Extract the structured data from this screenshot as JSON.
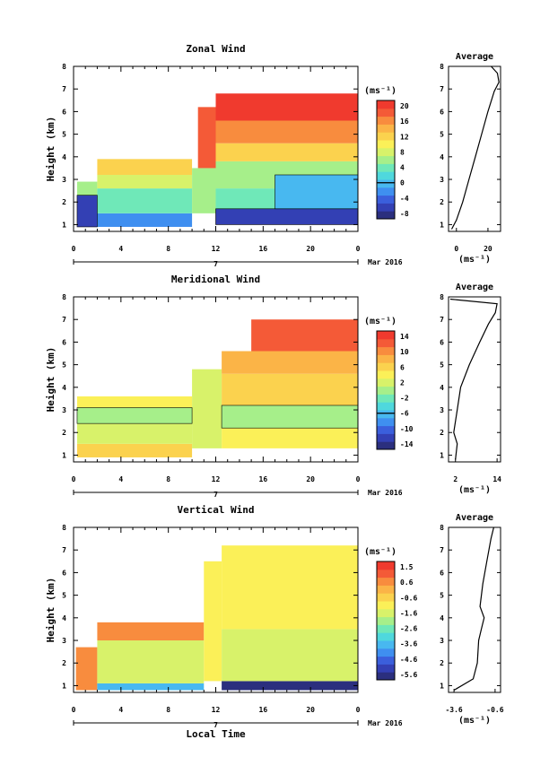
{
  "x_axis_title": "Local Time",
  "date_label": "Mar 2016",
  "day_label": "7",
  "colorbar_unit": "(ms⁻¹)",
  "chart_data": [
    {
      "type": "heatmap",
      "title": "Zonal Wind",
      "ylabel": "Height (km)",
      "xlabel": "Local Time",
      "xlim": [
        0,
        24
      ],
      "ylim": [
        0.7,
        8
      ],
      "x_ticks": [
        "0",
        "4",
        "8",
        "12",
        "16",
        "20",
        "0"
      ],
      "y_ticks": [
        "1",
        "2",
        "3",
        "4",
        "5",
        "6",
        "7",
        "8"
      ],
      "colorbar": {
        "label": "(ms⁻¹)",
        "ticks": [
          "20",
          "16",
          "12",
          "8",
          "4",
          "0",
          "-4",
          "-8"
        ],
        "range": [
          -10,
          22
        ]
      },
      "zero_contour": true,
      "fields": [
        {
          "t0": 0.3,
          "t1": 2.0,
          "h0": 0.9,
          "h1": 2.3,
          "v": -6
        },
        {
          "t0": 0.3,
          "t1": 2.0,
          "h0": 2.3,
          "h1": 2.9,
          "v": 6
        },
        {
          "t0": 2.0,
          "t1": 10.0,
          "h0": 0.9,
          "h1": 1.5,
          "v": -2
        },
        {
          "t0": 2.0,
          "t1": 10.0,
          "h0": 1.5,
          "h1": 2.6,
          "v": 4
        },
        {
          "t0": 2.0,
          "t1": 10.0,
          "h0": 2.6,
          "h1": 3.2,
          "v": 8
        },
        {
          "t0": 2.0,
          "t1": 10.0,
          "h0": 3.2,
          "h1": 3.9,
          "v": 13
        },
        {
          "t0": 10.0,
          "t1": 12.0,
          "h0": 1.5,
          "h1": 3.5,
          "v": 6
        },
        {
          "t0": 10.5,
          "t1": 12.0,
          "h0": 3.5,
          "h1": 6.2,
          "v": 19
        },
        {
          "t0": 12.0,
          "t1": 24.0,
          "h0": 1.0,
          "h1": 1.7,
          "v": -6
        },
        {
          "t0": 12.0,
          "t1": 24.0,
          "h0": 1.7,
          "h1": 2.6,
          "v": 4
        },
        {
          "t0": 12.0,
          "t1": 24.0,
          "h0": 2.6,
          "h1": 3.8,
          "v": 6
        },
        {
          "t0": 12.0,
          "t1": 24.0,
          "h0": 3.8,
          "h1": 4.6,
          "v": 12
        },
        {
          "t0": 12.0,
          "t1": 24.0,
          "h0": 4.6,
          "h1": 5.6,
          "v": 16
        },
        {
          "t0": 12.0,
          "t1": 24.0,
          "h0": 5.6,
          "h1": 6.8,
          "v": 20
        },
        {
          "t0": 17.0,
          "t1": 24.0,
          "h0": 1.7,
          "h1": 3.2,
          "v": 0
        }
      ],
      "average_profile": {
        "title": "Average",
        "xlabel": "(ms⁻¹)",
        "xlim": [
          -5,
          28
        ],
        "x_ticks": [
          "0",
          "20"
        ],
        "ylim": [
          0.7,
          8
        ],
        "points": [
          [
            -3,
            0.8
          ],
          [
            0,
            1.2
          ],
          [
            4,
            2.0
          ],
          [
            8,
            3.0
          ],
          [
            12,
            4.0
          ],
          [
            16,
            5.0
          ],
          [
            20,
            6.0
          ],
          [
            24,
            6.9
          ],
          [
            27,
            7.3
          ],
          [
            26,
            7.7
          ],
          [
            22,
            8.0
          ]
        ]
      }
    },
    {
      "type": "heatmap",
      "title": "Meridional Wind",
      "ylabel": "Height (km)",
      "xlabel": "Local Time",
      "xlim": [
        0,
        24
      ],
      "ylim": [
        0.7,
        8
      ],
      "x_ticks": [
        "0",
        "4",
        "8",
        "12",
        "16",
        "20",
        "0"
      ],
      "y_ticks": [
        "1",
        "2",
        "3",
        "4",
        "5",
        "6",
        "7",
        "8"
      ],
      "colorbar": {
        "label": "(ms⁻¹)",
        "ticks": [
          "14",
          "10",
          "6",
          "2",
          "-2",
          "-6",
          "-10",
          "-14"
        ],
        "range": [
          -16,
          16
        ]
      },
      "zero_contour": true,
      "fields": [
        {
          "t0": 0.3,
          "t1": 10.0,
          "h0": 0.9,
          "h1": 1.5,
          "v": 6
        },
        {
          "t0": 0.3,
          "t1": 10.0,
          "h0": 1.5,
          "h1": 2.4,
          "v": 2
        },
        {
          "t0": 0.3,
          "t1": 10.0,
          "h0": 2.4,
          "h1": 3.1,
          "v": 0
        },
        {
          "t0": 0.3,
          "t1": 10.0,
          "h0": 3.1,
          "h1": 3.6,
          "v": 4
        },
        {
          "t0": 10.0,
          "t1": 12.5,
          "h0": 1.3,
          "h1": 4.8,
          "v": 3
        },
        {
          "t0": 12.5,
          "t1": 24.0,
          "h0": 1.3,
          "h1": 2.2,
          "v": 4
        },
        {
          "t0": 12.5,
          "t1": 24.0,
          "h0": 2.2,
          "h1": 3.2,
          "v": 1
        },
        {
          "t0": 12.5,
          "t1": 24.0,
          "h0": 3.2,
          "h1": 4.6,
          "v": 6
        },
        {
          "t0": 12.5,
          "t1": 24.0,
          "h0": 4.6,
          "h1": 5.6,
          "v": 9
        },
        {
          "t0": 15.0,
          "t1": 24.0,
          "h0": 5.6,
          "h1": 7.0,
          "v": 13
        }
      ],
      "average_profile": {
        "title": "Average",
        "xlabel": "(ms⁻¹)",
        "xlim": [
          0,
          15
        ],
        "x_ticks": [
          "2",
          "14"
        ],
        "ylim": [
          0.7,
          8
        ],
        "points": [
          [
            2,
            0.8
          ],
          [
            2.5,
            1.5
          ],
          [
            1.5,
            2.0
          ],
          [
            2.5,
            3.0
          ],
          [
            3.5,
            4.0
          ],
          [
            6,
            5.0
          ],
          [
            9,
            6.0
          ],
          [
            11.5,
            6.8
          ],
          [
            13.5,
            7.3
          ],
          [
            14,
            7.7
          ],
          [
            0.5,
            7.9
          ]
        ]
      }
    },
    {
      "type": "heatmap",
      "title": "Vertical Wind",
      "ylabel": "Height (km)",
      "xlabel": "Local Time",
      "xlim": [
        0,
        24
      ],
      "ylim": [
        0.7,
        8
      ],
      "x_ticks": [
        "0",
        "4",
        "8",
        "12",
        "16",
        "20",
        "0"
      ],
      "y_ticks": [
        "1",
        "2",
        "3",
        "4",
        "5",
        "6",
        "7",
        "8"
      ],
      "colorbar": {
        "label": "(ms⁻¹)",
        "ticks": [
          "1.5",
          "0.6",
          "-0.6",
          "-1.6",
          "-2.6",
          "-3.6",
          "-4.6",
          "-5.6"
        ],
        "range": [
          -6.1,
          2.0
        ]
      },
      "zero_contour": false,
      "fields": [
        {
          "t0": 0.2,
          "t1": 2.0,
          "h0": 0.8,
          "h1": 2.7,
          "v": 0.6
        },
        {
          "t0": 2.0,
          "t1": 11.0,
          "h0": 0.8,
          "h1": 1.1,
          "v": -3.6
        },
        {
          "t0": 2.0,
          "t1": 11.0,
          "h0": 1.1,
          "h1": 3.0,
          "v": -1.6
        },
        {
          "t0": 2.0,
          "t1": 11.0,
          "h0": 3.0,
          "h1": 3.8,
          "v": 0.6
        },
        {
          "t0": 11.0,
          "t1": 12.5,
          "h0": 1.2,
          "h1": 6.5,
          "v": -0.8
        },
        {
          "t0": 12.5,
          "t1": 24.0,
          "h0": 0.8,
          "h1": 1.2,
          "v": -5.6
        },
        {
          "t0": 12.5,
          "t1": 24.0,
          "h0": 1.2,
          "h1": 3.5,
          "v": -1.6
        },
        {
          "t0": 12.5,
          "t1": 24.0,
          "h0": 3.5,
          "h1": 7.2,
          "v": -0.8
        }
      ],
      "average_profile": {
        "title": "Average",
        "xlabel": "(ms⁻¹)",
        "xlim": [
          -4.0,
          -0.2
        ],
        "x_ticks": [
          "-3.6",
          "-0.6"
        ],
        "ylim": [
          0.7,
          8
        ],
        "points": [
          [
            -3.6,
            0.8
          ],
          [
            -2.2,
            1.3
          ],
          [
            -1.9,
            2.0
          ],
          [
            -1.8,
            3.0
          ],
          [
            -1.6,
            3.5
          ],
          [
            -1.4,
            4.0
          ],
          [
            -1.7,
            4.5
          ],
          [
            -1.5,
            5.5
          ],
          [
            -1.2,
            6.5
          ],
          [
            -0.9,
            7.5
          ],
          [
            -0.7,
            8.0
          ]
        ]
      }
    }
  ]
}
